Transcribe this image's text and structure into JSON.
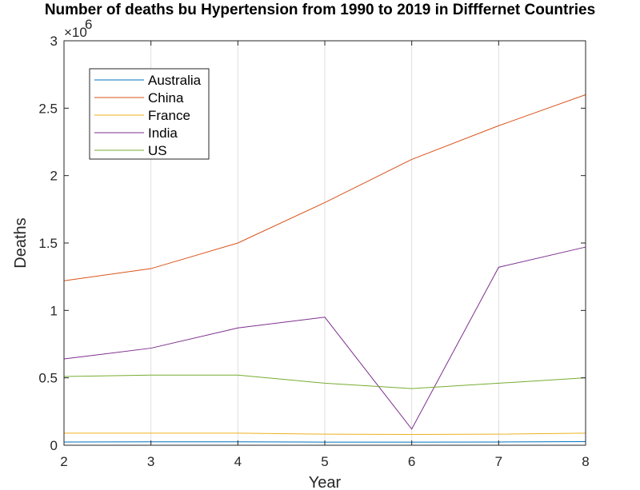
{
  "chart_data": {
    "type": "line",
    "title": "Number of deaths bu Hypertension from 1990 to 2019 in Difffernet Countries",
    "xlabel": "Year",
    "ylabel": "Deaths",
    "y_exponent_base": "×10",
    "y_exponent_power": "6",
    "xlim": [
      2,
      8
    ],
    "ylim": [
      0,
      3
    ],
    "x_ticks": [
      2,
      3,
      4,
      5,
      6,
      7,
      8
    ],
    "x_tick_labels": [
      "2",
      "3",
      "4",
      "5",
      "6",
      "7",
      "8"
    ],
    "y_ticks": [
      0,
      0.5,
      1,
      1.5,
      2,
      2.5,
      3
    ],
    "y_tick_labels": [
      "0",
      "0.5",
      "1",
      "1.5",
      "2",
      "2.5",
      "3"
    ],
    "grid": "vertical",
    "legend_position": "top-left",
    "x": [
      2,
      3,
      4,
      5,
      6,
      7,
      8
    ],
    "series": [
      {
        "name": "Australia",
        "color": "#0072bd",
        "values": [
          0.024,
          0.025,
          0.025,
          0.023,
          0.023,
          0.024,
          0.027
        ]
      },
      {
        "name": "China",
        "color": "#d95319",
        "values": [
          1.22,
          1.31,
          1.5,
          1.8,
          2.12,
          2.37,
          2.6
        ]
      },
      {
        "name": "France",
        "color": "#edb120",
        "values": [
          0.09,
          0.09,
          0.09,
          0.082,
          0.08,
          0.082,
          0.09
        ]
      },
      {
        "name": "India",
        "color": "#7e2f8e",
        "values": [
          0.64,
          0.72,
          0.87,
          0.95,
          0.12,
          1.32,
          1.47
        ]
      },
      {
        "name": "US",
        "color": "#77ac30",
        "values": [
          0.51,
          0.52,
          0.52,
          0.46,
          0.42,
          0.46,
          0.5
        ]
      }
    ]
  }
}
